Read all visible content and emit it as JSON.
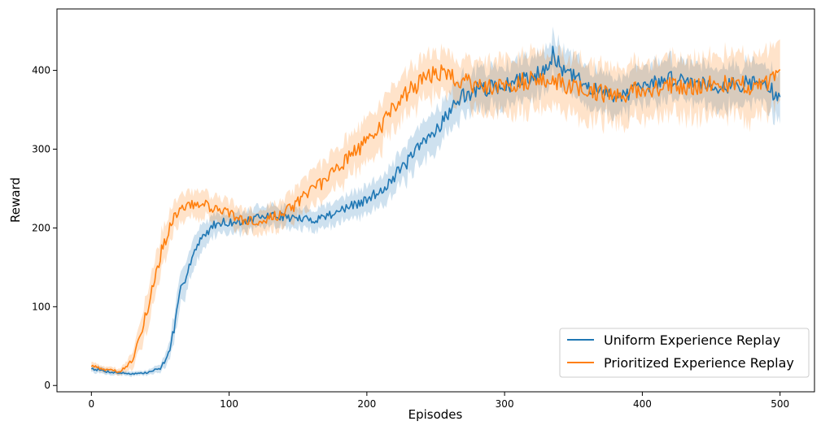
{
  "chart_data": {
    "type": "line",
    "title": "",
    "xlabel": "Episodes",
    "ylabel": "Reward",
    "xlim": [
      -25,
      525
    ],
    "ylim": [
      -8,
      478
    ],
    "xticks": [
      0,
      100,
      200,
      300,
      400,
      500
    ],
    "yticks": [
      0,
      100,
      200,
      300,
      400
    ],
    "grid": false,
    "legend": {
      "position": "lower-right"
    },
    "series": [
      {
        "name": "Uniform Experience Replay",
        "color": "#1f77b4",
        "band_color": "#1f77b4",
        "x": [
          0,
          10,
          20,
          30,
          40,
          50,
          55,
          60,
          65,
          70,
          75,
          80,
          85,
          90,
          95,
          100,
          110,
          120,
          130,
          140,
          150,
          160,
          170,
          180,
          190,
          200,
          210,
          220,
          230,
          240,
          250,
          260,
          270,
          280,
          290,
          300,
          310,
          320,
          330,
          335,
          340,
          350,
          360,
          370,
          380,
          390,
          400,
          410,
          420,
          430,
          440,
          450,
          460,
          470,
          480,
          490,
          500
        ],
        "mean": [
          22,
          18,
          16,
          15,
          16,
          22,
          35,
          70,
          120,
          150,
          170,
          185,
          197,
          205,
          208,
          207,
          208,
          212,
          216,
          214,
          212,
          210,
          215,
          222,
          228,
          235,
          248,
          265,
          285,
          305,
          325,
          348,
          368,
          375,
          378,
          380,
          386,
          393,
          405,
          420,
          405,
          392,
          380,
          372,
          368,
          372,
          378,
          385,
          390,
          388,
          385,
          382,
          380,
          382,
          385,
          382,
          360
        ],
        "half_width": [
          5,
          4,
          3,
          3,
          3,
          5,
          10,
          18,
          20,
          20,
          18,
          16,
          14,
          14,
          13,
          13,
          13,
          13,
          13,
          13,
          13,
          13,
          14,
          15,
          16,
          17,
          18,
          20,
          22,
          24,
          25,
          25,
          25,
          25,
          25,
          25,
          25,
          25,
          25,
          26,
          26,
          25,
          24,
          24,
          24,
          24,
          24,
          24,
          24,
          24,
          24,
          25,
          25,
          25,
          25,
          25,
          30
        ]
      },
      {
        "name": "Prioritized Experience Replay",
        "color": "#ff7f0e",
        "band_color": "#ff7f0e",
        "x": [
          0,
          10,
          20,
          25,
          30,
          35,
          40,
          45,
          50,
          55,
          60,
          65,
          70,
          80,
          90,
          100,
          110,
          120,
          130,
          140,
          150,
          160,
          170,
          180,
          190,
          200,
          210,
          220,
          230,
          240,
          250,
          260,
          270,
          280,
          290,
          300,
          310,
          320,
          330,
          340,
          350,
          360,
          370,
          380,
          390,
          400,
          410,
          420,
          430,
          440,
          450,
          460,
          470,
          480,
          490,
          500
        ],
        "mean": [
          25,
          20,
          18,
          22,
          35,
          60,
          95,
          130,
          165,
          190,
          212,
          222,
          228,
          230,
          225,
          218,
          210,
          208,
          214,
          218,
          232,
          248,
          262,
          280,
          295,
          310,
          330,
          352,
          372,
          388,
          398,
          395,
          385,
          382,
          380,
          380,
          385,
          388,
          390,
          385,
          378,
          375,
          372,
          370,
          372,
          375,
          378,
          382,
          380,
          378,
          382,
          385,
          382,
          378,
          382,
          410
        ],
        "half_width": [
          5,
          4,
          4,
          6,
          10,
          16,
          22,
          24,
          24,
          22,
          20,
          18,
          18,
          17,
          16,
          15,
          14,
          14,
          16,
          18,
          20,
          22,
          24,
          25,
          26,
          27,
          28,
          28,
          28,
          27,
          27,
          27,
          28,
          30,
          32,
          34,
          35,
          36,
          36,
          36,
          36,
          36,
          35,
          35,
          35,
          35,
          36,
          36,
          36,
          36,
          36,
          38,
          38,
          38,
          38,
          38
        ]
      }
    ]
  }
}
